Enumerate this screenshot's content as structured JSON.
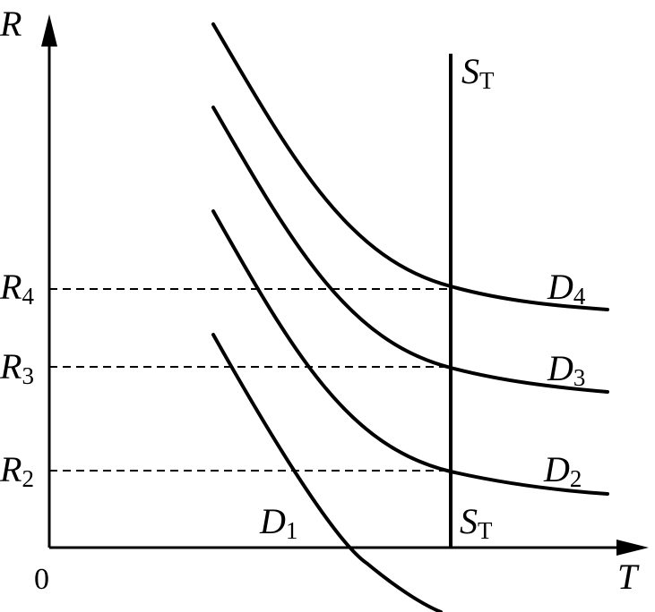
{
  "axes": {
    "y_label": "R",
    "x_label": "T",
    "origin_label": "0"
  },
  "supply": {
    "label_top": {
      "base": "S",
      "sub": "T"
    },
    "label_bottom": {
      "base": "S",
      "sub": "T"
    }
  },
  "levels": [
    {
      "base": "R",
      "sub": "4"
    },
    {
      "base": "R",
      "sub": "3"
    },
    {
      "base": "R",
      "sub": "2"
    }
  ],
  "demand_curves": [
    {
      "base": "D",
      "sub": "1"
    },
    {
      "base": "D",
      "sub": "2"
    },
    {
      "base": "D",
      "sub": "3"
    },
    {
      "base": "D",
      "sub": "4"
    }
  ],
  "colors": {
    "ink": "#000000",
    "background": "#ffffff"
  }
}
